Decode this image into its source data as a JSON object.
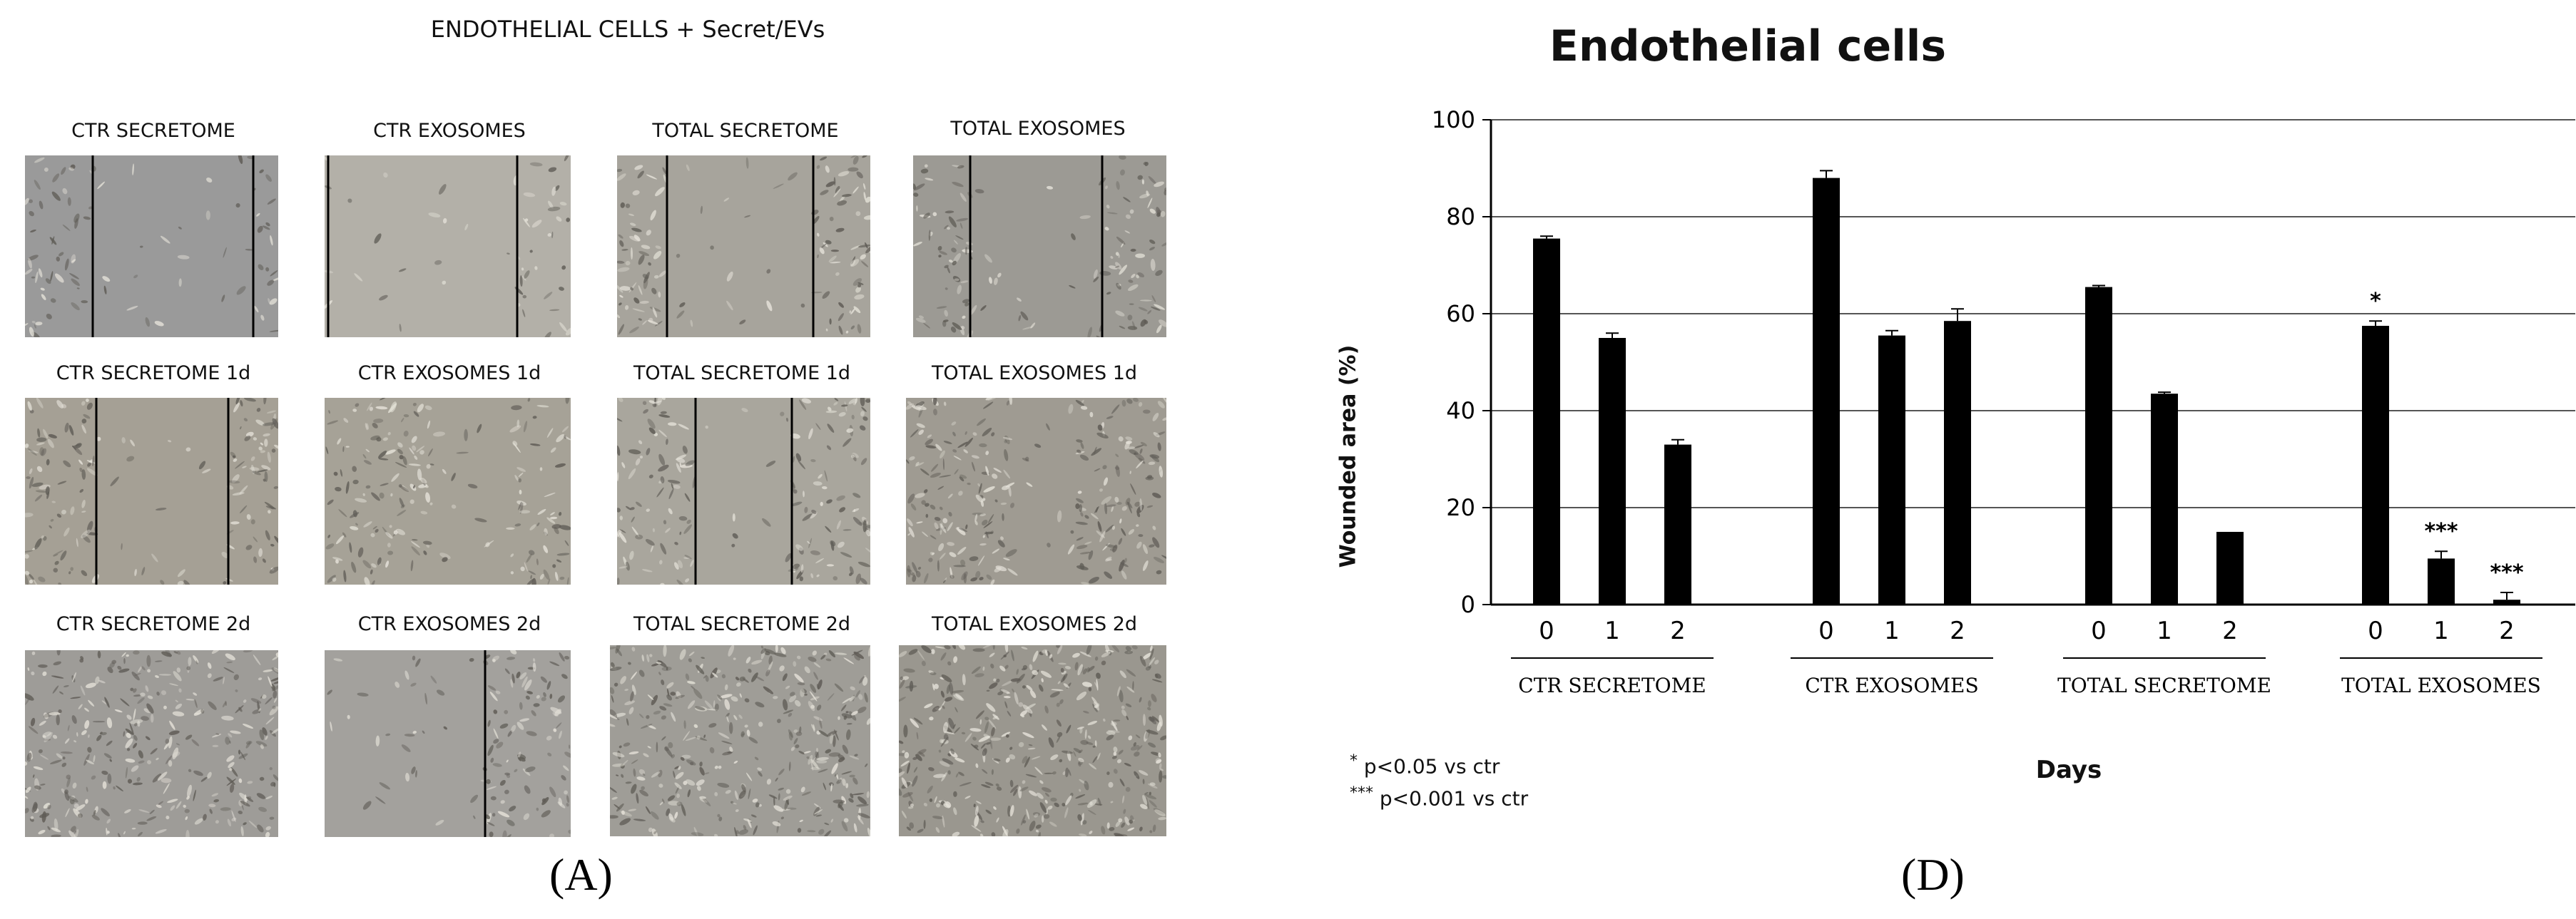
{
  "panel_a": {
    "title": "ENDOTHELIAL CELLS + Secret/EVs",
    "rows": [
      [
        "CTR SECRETOME",
        "CTR EXOSOMES",
        "TOTAL SECRETOME",
        "TOTAL EXOSOMES"
      ],
      [
        "CTR SECRETOME 1d",
        "CTR EXOSOMES 1d",
        "TOTAL SECRETOME 1d",
        "TOTAL EXOSOMES 1d"
      ],
      [
        "CTR SECRETOME 2d",
        "CTR EXOSOMES 2d",
        "TOTAL SECRETOME 2d",
        "TOTAL EXOSOMES 2d"
      ]
    ],
    "letter": "(A)"
  },
  "panel_d": {
    "letter": "(D)",
    "legend": [
      {
        "marker": "*",
        "text": "p<0.05 vs ctr"
      },
      {
        "marker": "***",
        "text": "p<0.001 vs ctr"
      }
    ]
  },
  "chart_data": {
    "type": "bar",
    "title": "Endothelial cells",
    "xlabel": "Days",
    "ylabel": "Wounded area (%)",
    "ylim": [
      0,
      100
    ],
    "yticks": [
      0,
      20,
      40,
      60,
      80,
      100
    ],
    "grid": true,
    "groups": [
      {
        "name": "CTR SECRETOME",
        "days": [
          "0",
          "1",
          "2"
        ],
        "values": [
          75.5,
          55,
          33
        ],
        "errors": [
          0.5,
          1,
          1
        ],
        "sig": [
          "",
          "",
          ""
        ]
      },
      {
        "name": "CTR EXOSOMES",
        "days": [
          "0",
          "1",
          "2"
        ],
        "values": [
          88,
          55.5,
          58.5
        ],
        "errors": [
          1.5,
          1,
          2.5
        ],
        "sig": [
          "",
          "",
          ""
        ]
      },
      {
        "name": "TOTAL SECRETOME",
        "days": [
          "0",
          "1",
          "2"
        ],
        "values": [
          65.5,
          43.5,
          15
        ],
        "errors": [
          0.3,
          0.3,
          0
        ],
        "sig": [
          "",
          "",
          ""
        ]
      },
      {
        "name": "TOTAL EXOSOMES",
        "days": [
          "0",
          "1",
          "2"
        ],
        "values": [
          57.5,
          9.5,
          1
        ],
        "errors": [
          1,
          1.5,
          1.5
        ],
        "sig": [
          "*",
          "***",
          "***"
        ]
      }
    ],
    "colors": {
      "bar": "#000000",
      "grid": "#555555",
      "axis": "#000000"
    }
  }
}
